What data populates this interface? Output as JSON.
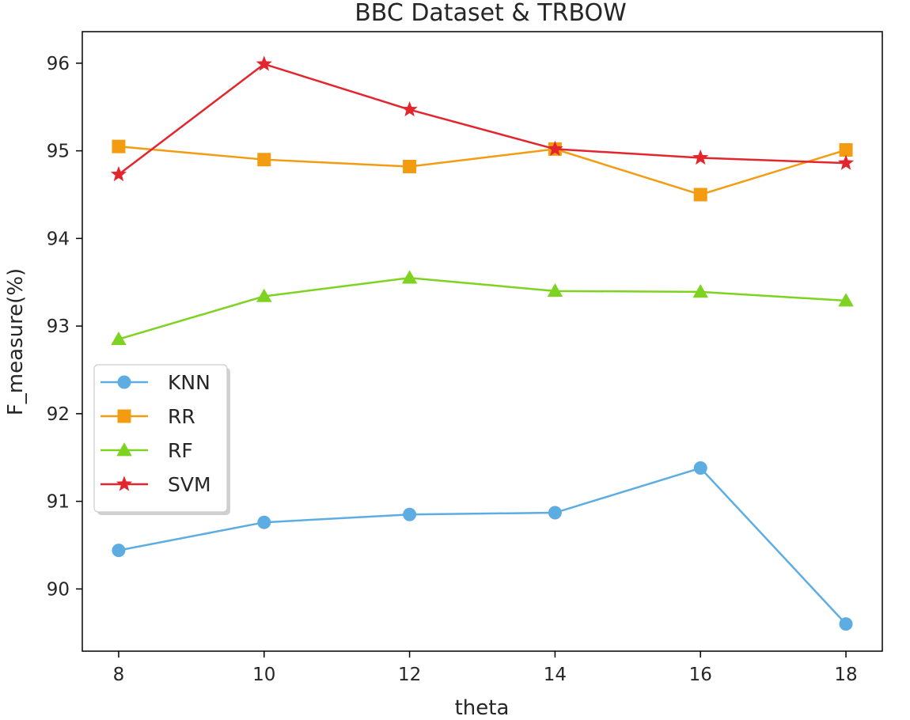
{
  "chart_data": {
    "type": "line",
    "title": "BBC Dataset & TRBOW",
    "xlabel": "theta",
    "ylabel": "F_measure(%)",
    "x": [
      8,
      10,
      12,
      14,
      16,
      18
    ],
    "xticks": [
      8,
      10,
      12,
      14,
      16,
      18
    ],
    "yticks": [
      90,
      91,
      92,
      93,
      94,
      95,
      96
    ],
    "xlim": [
      7.5,
      18.5
    ],
    "ylim": [
      89.29,
      96.36
    ],
    "grid": false,
    "legend_position": "center-left",
    "series": [
      {
        "name": "KNN",
        "values": [
          90.44,
          90.76,
          90.85,
          90.87,
          91.38,
          89.6
        ],
        "color": "#5dade2",
        "marker": "circle"
      },
      {
        "name": "RR",
        "values": [
          95.05,
          94.9,
          94.82,
          95.02,
          94.5,
          95.01
        ],
        "color": "#f39c12",
        "marker": "square"
      },
      {
        "name": "RF",
        "values": [
          92.85,
          93.34,
          93.55,
          93.4,
          93.39,
          93.29
        ],
        "color": "#7ed321",
        "marker": "triangle"
      },
      {
        "name": "SVM",
        "values": [
          94.73,
          95.99,
          95.47,
          95.02,
          94.92,
          94.86
        ],
        "color": "#e3262d",
        "marker": "star"
      }
    ]
  }
}
